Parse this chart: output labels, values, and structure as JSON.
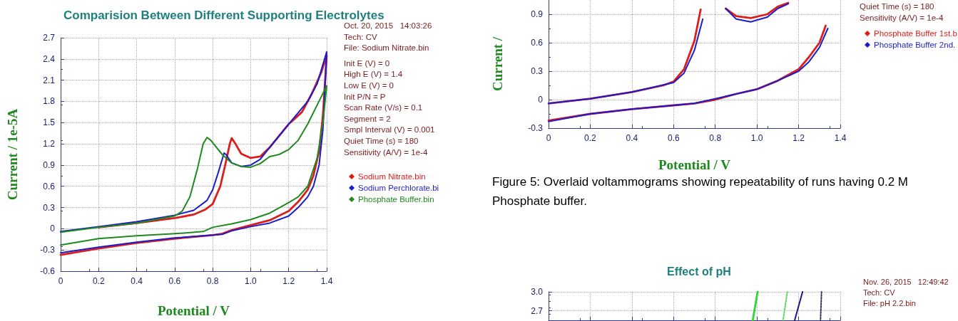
{
  "chart_data": [
    {
      "type": "line",
      "title": "Comparision Between Different Supporting Electrolytes",
      "xlabel": "Potential / V",
      "ylabel": "Current / 1e-5A",
      "xlim": [
        0,
        1.4
      ],
      "xticks": [
        0,
        0.2,
        0.4,
        0.6,
        0.8,
        {
          "value": 1,
          "label": "1.0"
        },
        1.2,
        1.4
      ],
      "ylim": [
        -0.6,
        2.7
      ],
      "yticks": [
        -0.6,
        -0.3,
        0,
        0.3,
        0.6,
        0.9,
        1.2,
        1.5,
        1.8,
        2.1,
        2.4,
        2.7
      ],
      "grid": true,
      "legend": "right",
      "marker": "none",
      "line_style": "solid",
      "annotations": [
        "Oct. 20, 2015   14:03:26",
        "Tech: CV",
        "File: Sodium Nitrate.bin",
        "Init E (V) = 0",
        "High E (V) = 1.4",
        "Low E (V) = 0",
        "Init P/N = P",
        "Scan Rate (V/s) = 0.1",
        "Segment = 2",
        "Smpl Interval (V) = 0.001",
        "Quiet Time (s) = 180",
        "Sensitivity (A/V) = 1e-4"
      ],
      "series": [
        {
          "name": "Sodium Nitrate.bin",
          "color": "#dd1c1c",
          "x": [
            0.2,
            0.4,
            0.6,
            0.7,
            0.76,
            0.8,
            0.84,
            0.87,
            0.89,
            0.9,
            0.92,
            0.95,
            1.0,
            1.05,
            1.1,
            1.2,
            1.23,
            1.27,
            1.32,
            1.37,
            1.4,
            1.38,
            1.36,
            1.33,
            1.3,
            1.25,
            1.2,
            1.1,
            1.0,
            0.9,
            0.85,
            0.8,
            0.6,
            0.4,
            0.2,
            0
          ],
          "values": [
            0.02,
            0.08,
            0.15,
            0.2,
            0.27,
            0.35,
            0.6,
            0.95,
            1.2,
            1.28,
            1.2,
            1.06,
            1.0,
            1.02,
            1.15,
            1.48,
            1.55,
            1.65,
            1.9,
            2.2,
            2.45,
            1.6,
            1.1,
            0.75,
            0.55,
            0.38,
            0.25,
            0.12,
            0.05,
            -0.02,
            -0.07,
            -0.09,
            -0.14,
            -0.2,
            -0.28,
            -0.37
          ]
        },
        {
          "name": "Sodium Perchlorate.bi",
          "color": "#1c1ccc",
          "x": [
            0,
            0.2,
            0.4,
            0.6,
            0.7,
            0.77,
            0.8,
            0.83,
            0.86,
            0.87,
            0.9,
            0.95,
            1.0,
            1.05,
            1.1,
            1.2,
            1.3,
            1.35,
            1.4,
            1.38,
            1.36,
            1.33,
            1.3,
            1.25,
            1.2,
            1.1,
            1.0,
            0.9,
            0.85,
            0.6,
            0.4,
            0.2,
            0
          ],
          "values": [
            -0.04,
            0.03,
            0.1,
            0.19,
            0.26,
            0.4,
            0.55,
            0.8,
            1.07,
            1.05,
            0.93,
            0.88,
            0.9,
            0.98,
            1.15,
            1.48,
            1.8,
            2.05,
            2.5,
            1.4,
            0.9,
            0.6,
            0.45,
            0.3,
            0.18,
            0.08,
            0.03,
            -0.03,
            -0.08,
            -0.13,
            -0.19,
            -0.26,
            -0.34
          ]
        },
        {
          "name": "Phosphate Buffer.bin",
          "color": "#1e8a1e",
          "x": [
            0,
            0.2,
            0.4,
            0.6,
            0.64,
            0.68,
            0.72,
            0.75,
            0.77,
            0.79,
            0.85,
            0.9,
            0.95,
            1.0,
            1.05,
            1.1,
            1.15,
            1.2,
            1.25,
            1.3,
            1.35,
            1.4,
            1.38,
            1.35,
            1.3,
            1.25,
            1.2,
            1.1,
            1.0,
            0.9,
            0.8,
            0.75,
            0.6,
            0.4,
            0.2,
            0
          ],
          "values": [
            -0.05,
            0.02,
            0.08,
            0.18,
            0.25,
            0.45,
            0.85,
            1.2,
            1.29,
            1.25,
            1.05,
            0.93,
            0.88,
            0.87,
            0.92,
            1.02,
            1.05,
            1.12,
            1.25,
            1.48,
            1.75,
            2.02,
            1.5,
            1.0,
            0.6,
            0.45,
            0.37,
            0.22,
            0.13,
            0.07,
            0.02,
            -0.04,
            -0.07,
            -0.1,
            -0.14,
            -0.23
          ]
        }
      ]
    },
    {
      "type": "line",
      "xlabel": "Potential / V",
      "ylabel": "Current /",
      "xlim": [
        0,
        1.4
      ],
      "xticks": [
        0,
        0.2,
        0.4,
        0.6,
        0.8,
        {
          "value": 1,
          "label": "1.0"
        },
        1.2,
        1.4
      ],
      "ylim": [
        -0.3,
        1.05
      ],
      "yticks": [
        -0.3,
        0,
        0.3,
        0.6,
        0.9
      ],
      "grid": true,
      "legend": "right",
      "marker": "none",
      "line_style": "solid",
      "annotations": [
        "Quiet Time (s) = 180",
        "Sensitivity (A/V) = 1e-4",
        "Figure 5: Overlaid voltammograms showing repeatability of runs having 0.2 M Phosphate buffer."
      ],
      "series": [
        {
          "name": "Phosphate Buffer 1st.b",
          "color": "#dd1c1c",
          "x": [
            0,
            0.2,
            0.4,
            0.55,
            0.6,
            0.65,
            0.7,
            0.73,
            0.78,
            0.85,
            0.9,
            0.97,
            1.05,
            1.1,
            1.15,
            1.28,
            1.33,
            1.3,
            1.25,
            1.2,
            1.1,
            1.0,
            0.9,
            0.8,
            0.7,
            0.6,
            0.4,
            0.2,
            0
          ],
          "values": [
            -0.04,
            0.01,
            0.08,
            0.15,
            0.19,
            0.32,
            0.62,
            0.95,
            null,
            0.96,
            0.88,
            0.86,
            0.9,
            0.98,
            1.02,
            null,
            0.78,
            0.6,
            0.45,
            0.32,
            0.2,
            0.11,
            0.06,
            0.0,
            -0.04,
            -0.06,
            -0.1,
            -0.15,
            -0.22
          ]
        },
        {
          "name": "Phosphate Buffer 2nd.",
          "color": "#1c1ccc",
          "x": [
            0,
            0.2,
            0.4,
            0.6,
            0.65,
            0.7,
            0.74,
            0.8,
            0.85,
            0.9,
            0.97,
            1.05,
            1.1,
            1.15,
            1.28,
            1.34,
            1.3,
            1.25,
            1.2,
            1.1,
            1.0,
            0.9,
            0.8,
            0.7,
            0.6,
            0.4,
            0.2,
            0
          ],
          "values": [
            -0.04,
            0.01,
            0.08,
            0.18,
            0.28,
            0.52,
            0.85,
            null,
            0.96,
            0.85,
            0.82,
            0.87,
            0.96,
            1.01,
            null,
            0.75,
            0.55,
            0.4,
            0.3,
            0.2,
            0.11,
            0.06,
            0.01,
            -0.04,
            -0.06,
            -0.1,
            -0.15,
            -0.23
          ]
        }
      ]
    },
    {
      "type": "line",
      "title": "Effect of pH",
      "xlim": [
        0,
        1.4
      ],
      "xticks": [
        {
          "value": 0,
          "label": null
        },
        {
          "value": 0.2,
          "label": null
        },
        {
          "value": 0.4,
          "label": null
        },
        {
          "value": 0.6,
          "label": null
        },
        {
          "value": 0.8,
          "label": null
        },
        {
          "value": 1,
          "label": null
        },
        {
          "value": 1.2,
          "label": null
        },
        {
          "value": 1.4,
          "label": null
        }
      ],
      "ylim": [
        2.55,
        3.0
      ],
      "yticks": [
        {
          "value": 2.7,
          "label": "2.7"
        },
        {
          "value": 3.0,
          "label": "3.0"
        }
      ],
      "tick_labels": "y",
      "grid": true,
      "marker": "none",
      "annotations": [
        "Nov. 26, 2015   12:49:42",
        "Tech: CV",
        "File: pH 2.2.bin"
      ],
      "series": [
        {
          "color": "#2fd62f",
          "line_style": "solid",
          "x": [
            1.003,
            0.98
          ],
          "values": [
            3.0,
            2.55
          ]
        },
        {
          "color": "#5fd85f",
          "line_style": "dotted",
          "x": [
            1.146,
            1.125
          ],
          "values": [
            3.0,
            2.55
          ]
        },
        {
          "color": "#1a1a80",
          "line_style": "solid",
          "x": [
            1.219,
            1.181
          ],
          "values": [
            3.0,
            2.55
          ]
        },
        {
          "color": "#33335a",
          "line_style": "dotted",
          "x": [
            1.31,
            1.305
          ],
          "values": [
            3.0,
            2.55
          ]
        }
      ]
    }
  ]
}
